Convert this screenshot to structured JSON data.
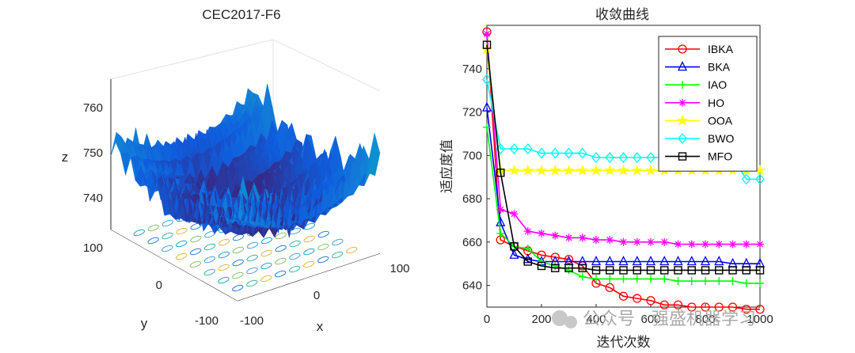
{
  "watermark": "公众号 · 强盛机器学习",
  "surface_plot": {
    "title": "CEC2017-F6",
    "xlabel": "x",
    "ylabel": "y",
    "zlabel": "z",
    "x_ticks": [
      "-100",
      "0",
      "100"
    ],
    "y_ticks": [
      "-100",
      "0",
      "100"
    ],
    "z_ticks": [
      "740",
      "750",
      "760"
    ],
    "colormap": "parula"
  },
  "chart_data": {
    "type": "line",
    "title": "收敛曲线",
    "xlabel": "迭代次数",
    "ylabel": "适应度值",
    "xlim": [
      0,
      1000
    ],
    "ylim": [
      630,
      760
    ],
    "x_ticks": [
      "0",
      "200",
      "400",
      "600",
      "800",
      "1000"
    ],
    "y_ticks": [
      "640",
      "660",
      "680",
      "700",
      "720",
      "740"
    ],
    "x": [
      0,
      50,
      100,
      150,
      200,
      250,
      300,
      350,
      400,
      450,
      500,
      550,
      600,
      650,
      700,
      750,
      800,
      850,
      900,
      950,
      1000
    ],
    "legend_position": "top-right",
    "series": [
      {
        "name": "IBKA",
        "color": "#ff0000",
        "marker": "circle",
        "values": [
          757,
          661,
          658,
          656,
          654,
          653,
          652,
          649,
          641,
          639,
          635,
          634,
          633,
          631,
          631,
          630,
          630,
          630,
          630,
          629,
          629
        ]
      },
      {
        "name": "BKA",
        "color": "#0000ff",
        "marker": "triangle",
        "values": [
          722,
          669,
          654,
          652,
          651,
          651,
          651,
          651,
          651,
          651,
          651,
          651,
          651,
          651,
          651,
          651,
          651,
          651,
          650,
          650,
          650
        ]
      },
      {
        "name": "IAO",
        "color": "#00ff00",
        "marker": "plus",
        "values": [
          713,
          664,
          658,
          657,
          651,
          649,
          647,
          644,
          643,
          643,
          643,
          643,
          643,
          643,
          642,
          642,
          642,
          642,
          642,
          641,
          641
        ]
      },
      {
        "name": "HO",
        "color": "#ff00ff",
        "marker": "asterisk",
        "values": [
          756,
          675,
          673,
          665,
          664,
          663,
          662,
          662,
          661,
          661,
          660,
          660,
          660,
          660,
          659,
          659,
          659,
          659,
          659,
          659,
          659
        ]
      },
      {
        "name": "OOA",
        "color": "#ffff00",
        "marker": "star",
        "values": [
          749,
          693,
          693,
          693,
          693,
          693,
          693,
          693,
          693,
          693,
          693,
          693,
          693,
          693,
          693,
          693,
          693,
          693,
          693,
          693,
          693
        ]
      },
      {
        "name": "BWO",
        "color": "#00ffff",
        "marker": "diamond",
        "values": [
          735,
          703,
          703,
          703,
          701,
          701,
          701,
          701,
          699,
          699,
          699,
          699,
          699,
          699,
          699,
          699,
          699,
          699,
          699,
          689,
          689
        ]
      },
      {
        "name": "MFO",
        "color": "#000000",
        "marker": "square",
        "values": [
          751,
          692,
          658,
          651,
          649,
          648,
          648,
          648,
          647,
          647,
          647,
          647,
          647,
          647,
          647,
          647,
          647,
          647,
          647,
          647,
          647
        ]
      }
    ]
  }
}
